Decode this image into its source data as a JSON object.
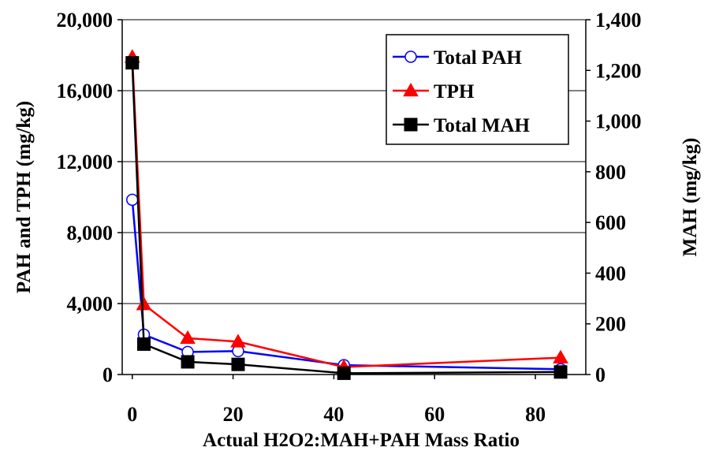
{
  "chart_data": {
    "type": "line",
    "xlabel": "Actual H2O2:MAH+PAH Mass Ratio",
    "ylabel": "PAH and TPH  (mg/kg)",
    "y2label": "MAH (mg/kg)",
    "xlim": [
      -2,
      90
    ],
    "ylim": [
      0,
      20000
    ],
    "y2lim": [
      0,
      1400
    ],
    "x_ticks": [
      "0",
      "20",
      "40",
      "60",
      "80"
    ],
    "x_tick_values": [
      0,
      20,
      40,
      60,
      80
    ],
    "y_ticks": [
      "0",
      "4,000",
      "8,000",
      "12,000",
      "16,000",
      "20,000"
    ],
    "y_tick_values": [
      0,
      4000,
      8000,
      12000,
      16000,
      20000
    ],
    "y2_ticks": [
      "0",
      "200",
      "400",
      "600",
      "800",
      "1,000",
      "1,200",
      "1,400"
    ],
    "y2_tick_values": [
      0,
      200,
      400,
      600,
      800,
      1000,
      1200,
      1400
    ],
    "grid": "horizontal major gridlines on left axis",
    "legend_position": "top-right",
    "series": [
      {
        "name": "Total PAH",
        "axis": "left",
        "color": "#0000ff",
        "marker": "open-circle",
        "x": [
          0,
          2.3,
          11,
          21,
          42,
          85
        ],
        "y": [
          9850,
          2250,
          1270,
          1320,
          530,
          300
        ]
      },
      {
        "name": "TPH",
        "axis": "left",
        "color": "#ff0000",
        "marker": "triangle",
        "x": [
          0,
          2.3,
          11,
          21,
          42,
          85
        ],
        "y": [
          17900,
          3950,
          2050,
          1850,
          420,
          950
        ]
      },
      {
        "name": "Total MAH",
        "axis": "right",
        "color": "#000000",
        "marker": "square",
        "x": [
          0,
          2.3,
          11,
          21,
          42,
          85
        ],
        "y": [
          1230,
          120,
          50,
          40,
          5,
          10
        ]
      }
    ]
  }
}
